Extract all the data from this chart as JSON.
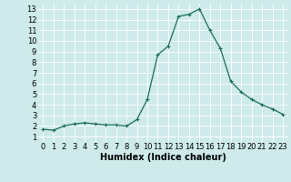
{
  "x": [
    0,
    1,
    2,
    3,
    4,
    5,
    6,
    7,
    8,
    9,
    10,
    11,
    12,
    13,
    14,
    15,
    16,
    17,
    18,
    19,
    20,
    21,
    22,
    23
  ],
  "y": [
    1.7,
    1.6,
    2.0,
    2.2,
    2.3,
    2.2,
    2.1,
    2.1,
    2.0,
    2.6,
    4.5,
    8.7,
    9.5,
    12.3,
    12.5,
    13.0,
    11.0,
    9.3,
    6.2,
    5.2,
    4.5,
    4.0,
    3.6,
    3.1
  ],
  "line_color": "#1a6b5a",
  "marker": "+",
  "markersize": 3,
  "linewidth": 0.9,
  "bg_color": "#ceeaea",
  "grid_color": "#ffffff",
  "xlabel": "Humidex (Indice chaleur)",
  "xlabel_fontsize": 7,
  "xlim": [
    -0.5,
    23.5
  ],
  "ylim": [
    0.5,
    13.5
  ],
  "xticks": [
    0,
    1,
    2,
    3,
    4,
    5,
    6,
    7,
    8,
    9,
    10,
    11,
    12,
    13,
    14,
    15,
    16,
    17,
    18,
    19,
    20,
    21,
    22,
    23
  ],
  "yticks": [
    1,
    2,
    3,
    4,
    5,
    6,
    7,
    8,
    9,
    10,
    11,
    12,
    13
  ],
  "tick_fontsize": 6,
  "markeredgewidth": 0.8
}
